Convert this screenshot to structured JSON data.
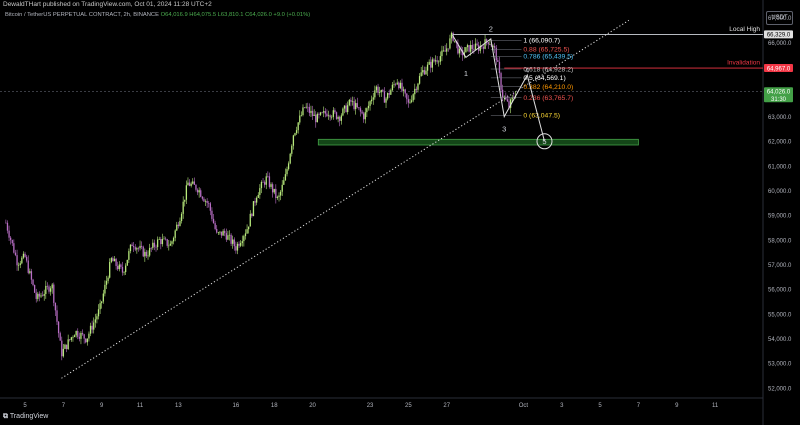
{
  "header": {
    "published": "DewaldTHart published on TradingView.com, Oct 01, 2024 11:28 UTC+2",
    "symbol": "Bitcoin / TetherUS PERPETUAL CONTRACT, 2h, BINANCE",
    "ohlc": "O64,016.9 H64,075.5 L63,810.1 C64,026.0 +9.0 (+0.01%)"
  },
  "currency_button": "USDT",
  "footer": {
    "logo_text": "TradingView"
  },
  "colors": {
    "up": "#b8ea7c",
    "down": "#b86ec5",
    "price_tag": "#43a047",
    "invalidation": "#f23645",
    "support_zone": "#2e7d32",
    "fib_1": "#ffffff",
    "fib_0_786": "#4fc3f7",
    "fib_0_618": "#bdbdbd",
    "fib_0_5": "#ffffff",
    "fib_0_382": "#ff9800",
    "fib_0_236": "#ef5350",
    "fib_0": "#fdd835"
  },
  "chart_data": {
    "type": "candlestick",
    "title": "Bitcoin / TetherUS PERPETUAL CONTRACT, 2h, BINANCE",
    "x_ticks": [
      "5",
      "7",
      "9",
      "11",
      "13",
      "16",
      "18",
      "20",
      "23",
      "25",
      "27",
      "Oct",
      "3",
      "5",
      "7",
      "9",
      "11"
    ],
    "y_ticks": [
      52000,
      53000,
      54000,
      55000,
      56000,
      57000,
      58000,
      59000,
      60000,
      61000,
      62000,
      63000,
      64000,
      65000,
      66000,
      67000
    ],
    "ylim": [
      51600,
      67400
    ],
    "path_anchors": [
      {
        "day": 4.0,
        "price": 58700
      },
      {
        "day": 4.6,
        "price": 57100
      },
      {
        "day": 5.0,
        "price": 57300
      },
      {
        "day": 5.6,
        "price": 55600
      },
      {
        "day": 6.4,
        "price": 56200
      },
      {
        "day": 6.9,
        "price": 53400
      },
      {
        "day": 7.6,
        "price": 54300
      },
      {
        "day": 8.2,
        "price": 54000
      },
      {
        "day": 8.9,
        "price": 55200
      },
      {
        "day": 9.5,
        "price": 57200
      },
      {
        "day": 10.1,
        "price": 56700
      },
      {
        "day": 10.6,
        "price": 57900
      },
      {
        "day": 11.3,
        "price": 57400
      },
      {
        "day": 12.0,
        "price": 58000
      },
      {
        "day": 12.6,
        "price": 57800
      },
      {
        "day": 13.1,
        "price": 59000
      },
      {
        "day": 13.5,
        "price": 60300
      },
      {
        "day": 14.0,
        "price": 60100
      },
      {
        "day": 14.6,
        "price": 59400
      },
      {
        "day": 15.0,
        "price": 58200
      },
      {
        "day": 15.4,
        "price": 58300
      },
      {
        "day": 16.0,
        "price": 57700
      },
      {
        "day": 16.6,
        "price": 58500
      },
      {
        "day": 17.1,
        "price": 59900
      },
      {
        "day": 17.6,
        "price": 60500
      },
      {
        "day": 18.2,
        "price": 59600
      },
      {
        "day": 18.6,
        "price": 60600
      },
      {
        "day": 19.0,
        "price": 62300
      },
      {
        "day": 19.6,
        "price": 63400
      },
      {
        "day": 20.2,
        "price": 62900
      },
      {
        "day": 20.8,
        "price": 63200
      },
      {
        "day": 21.4,
        "price": 63000
      },
      {
        "day": 22.0,
        "price": 63600
      },
      {
        "day": 22.7,
        "price": 63000
      },
      {
        "day": 23.3,
        "price": 64200
      },
      {
        "day": 23.8,
        "price": 63700
      },
      {
        "day": 24.4,
        "price": 64500
      },
      {
        "day": 25.0,
        "price": 63500
      },
      {
        "day": 25.7,
        "price": 64800
      },
      {
        "day": 26.4,
        "price": 65300
      },
      {
        "day": 26.9,
        "price": 65600
      },
      {
        "day": 27.3,
        "price": 66300
      },
      {
        "day": 27.7,
        "price": 65500
      },
      {
        "day": 28.2,
        "price": 65800
      },
      {
        "day": 28.7,
        "price": 65800
      },
      {
        "day": 29.2,
        "price": 66100
      },
      {
        "day": 29.55,
        "price": 65600
      },
      {
        "day": 29.9,
        "price": 63900
      },
      {
        "day": 30.25,
        "price": 63400
      },
      {
        "day": 30.6,
        "price": 64000
      }
    ],
    "trendline": {
      "start": {
        "day": 6.9,
        "price": 52400
      },
      "end": {
        "day": 36.5,
        "price": 66900
      }
    },
    "fibonacci": [
      {
        "level": "1",
        "price": 66090.7,
        "label": "1 (66,090.7)"
      },
      {
        "level": "0.88",
        "price": 65725.5,
        "label": "0.88 (65,725.5)"
      },
      {
        "level": "0.786",
        "price": 65439.5,
        "label": "0.786 (65,439.5)"
      },
      {
        "level": "0.618",
        "price": 64928.2,
        "label": "0.618 (64,928.2)"
      },
      {
        "level": "0.5",
        "price": 64569.1,
        "label": "0.5 (64,569.1)"
      },
      {
        "level": "0.382",
        "price": 64210.0,
        "label": "0.382 (64,210.0)"
      },
      {
        "level": "0.236",
        "price": 63765.7,
        "label": "0.236 (63,765.7)"
      },
      {
        "level": "0",
        "price": 63047.5,
        "label": "0 (63,047.5)"
      }
    ],
    "horizontal_lines": [
      {
        "name": "Local High",
        "price": 66329.0,
        "tag": "66,329.0"
      },
      {
        "name": "Invalidation",
        "price": 64967.0,
        "tag": "64,967.0"
      }
    ],
    "current_price": {
      "price": 64026.0,
      "tag": "64,026.0",
      "countdown": "31:30"
    },
    "support_zone": {
      "from_day": 20.3,
      "to_day": 37.0,
      "low_price": 61850,
      "high_price": 62080
    },
    "wave_path": [
      {
        "day": 27.3,
        "price": 66300
      },
      {
        "day": 28.0,
        "price": 65400
      },
      {
        "day": 29.3,
        "price": 66150
      },
      {
        "day": 30.0,
        "price": 63000
      },
      {
        "day": 31.2,
        "price": 64680
      },
      {
        "day": 32.1,
        "price": 62000
      }
    ],
    "wave_labels": [
      {
        "text": "1",
        "day": 28.0,
        "price": 64750
      },
      {
        "text": "2",
        "day": 29.3,
        "price": 66550
      },
      {
        "text": "3",
        "day": 30.0,
        "price": 62500
      },
      {
        "text": "4",
        "day": 31.2,
        "price": 64880
      },
      {
        "text": "5",
        "day": 32.1,
        "price": 62000
      }
    ]
  }
}
